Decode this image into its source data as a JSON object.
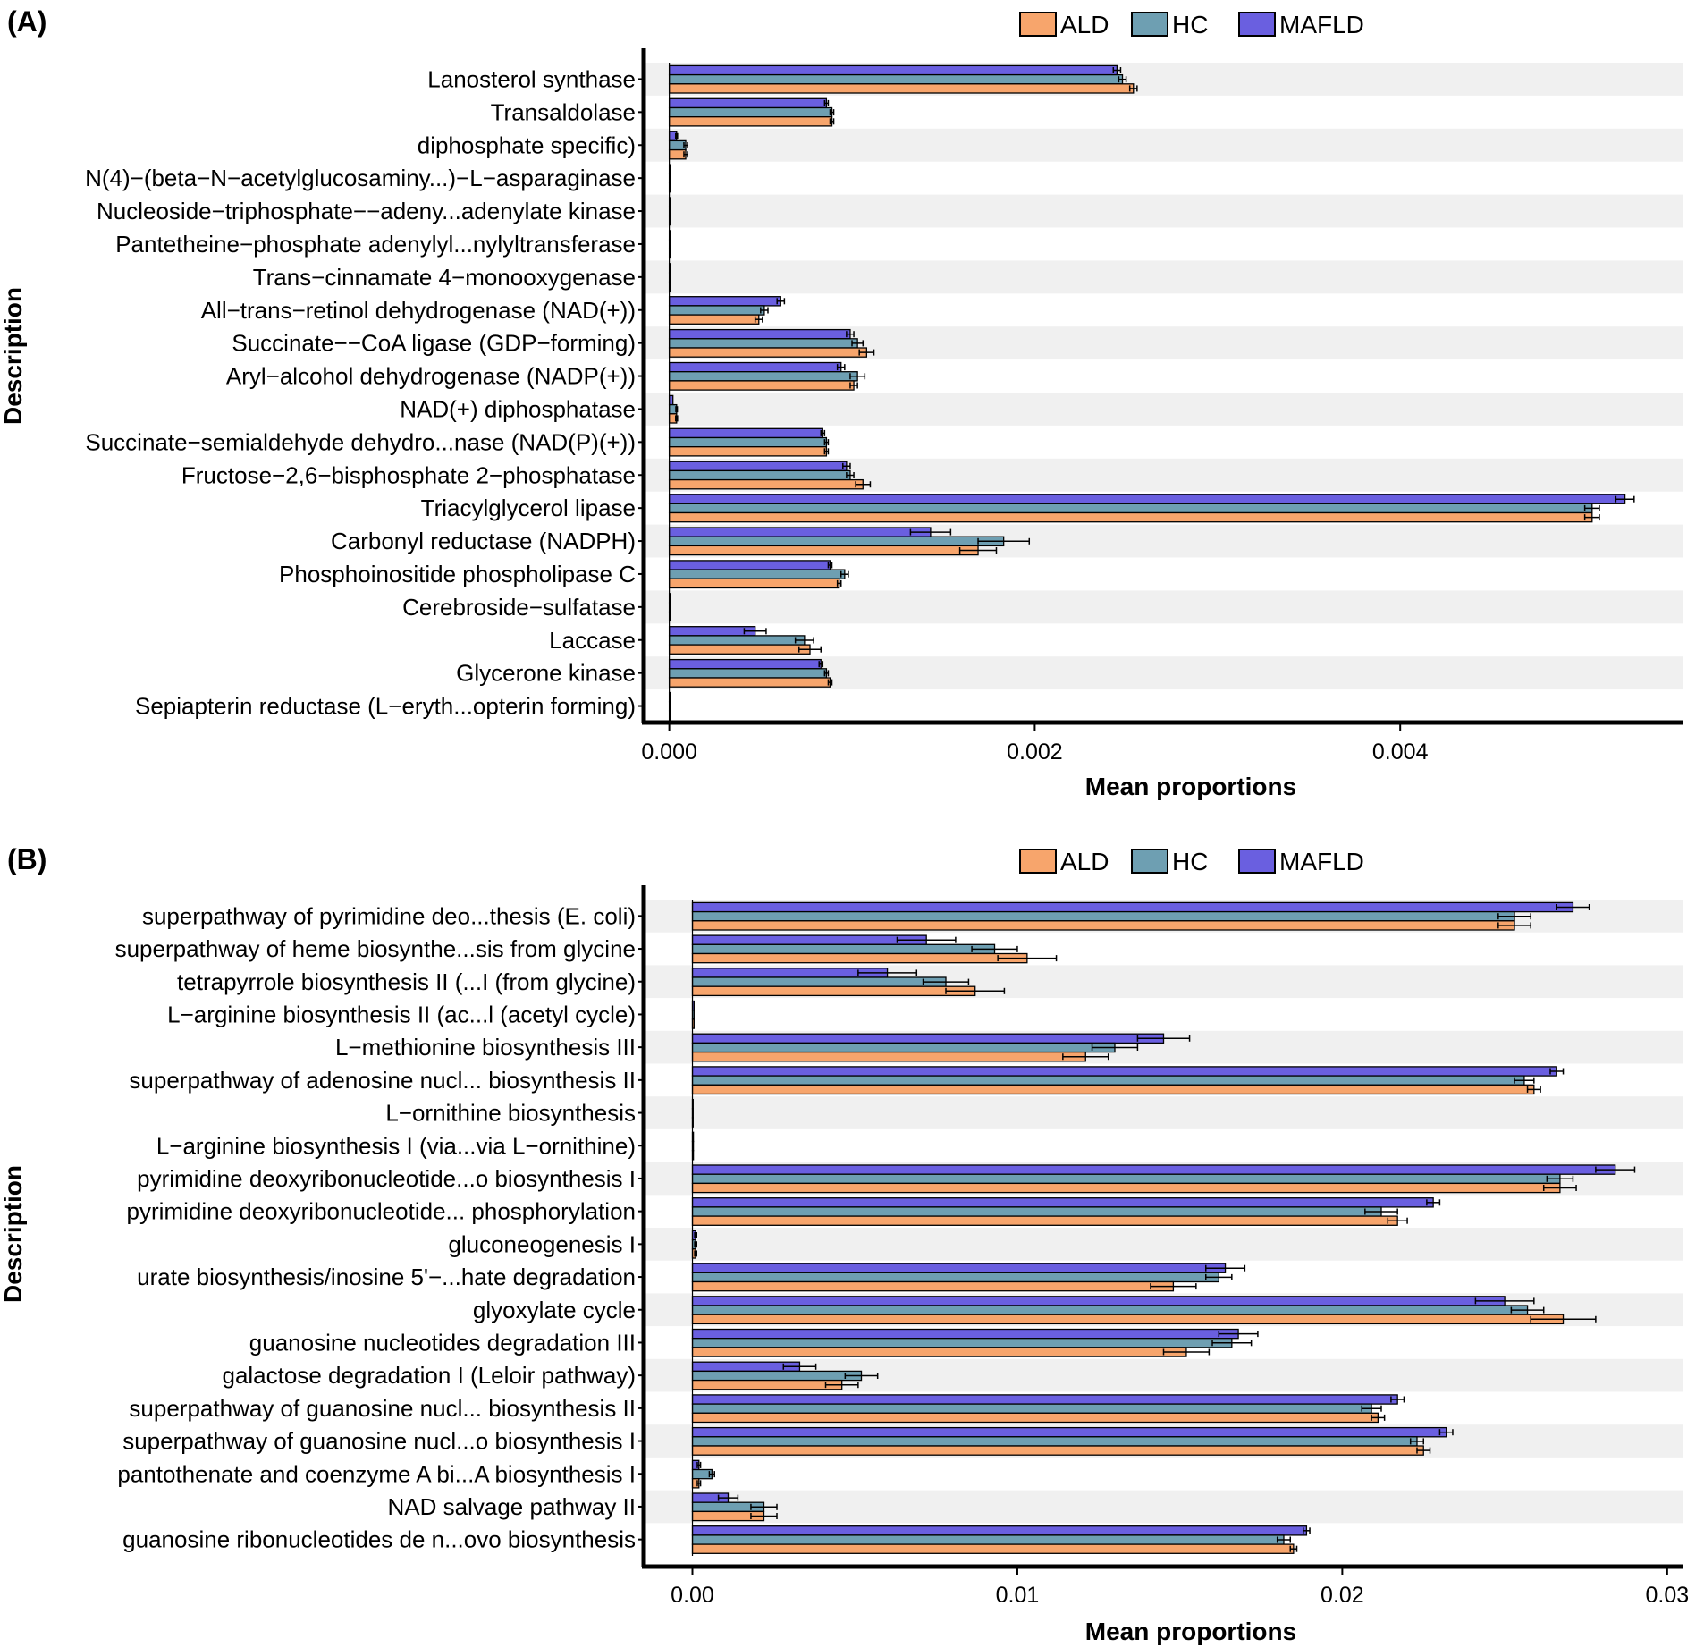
{
  "colors": {
    "ALD": "#F7A56C",
    "HC": "#6E9FB2",
    "MAFLD": "#6A5FE0",
    "band": "#F0F0F0",
    "axis": "#000000"
  },
  "legend_order": [
    "ALD",
    "HC",
    "MAFLD"
  ],
  "chart_data": [
    {
      "panel_label": "(A)",
      "type": "bar",
      "orientation": "horizontal",
      "ylabel": "Description",
      "xlabel": "Mean proportions",
      "xlim": [
        -0.00014,
        0.00555
      ],
      "xticks": [
        0.0,
        0.002,
        0.004
      ],
      "xtick_labels": [
        "0.000",
        "0.002",
        "0.004"
      ],
      "legend": [
        "ALD",
        "HC",
        "MAFLD"
      ],
      "categories": [
        "Lanosterol synthase",
        "Transaldolase",
        "diphosphate specific)",
        "N(4)−(beta−N−acetylglucosaminy...)−L−asparaginase",
        "Nucleoside−triphosphate−−adeny...adenylate kinase",
        "Pantetheine−phosphate adenylyl...nylyltransferase",
        "Trans−cinnamate 4−monooxygenase",
        "All−trans−retinol dehydrogenase (NAD(+))",
        "Succinate−−CoA ligase (GDP−forming)",
        "Aryl−alcohol dehydrogenase (NADP(+))",
        "NAD(+) diphosphatase",
        "Succinate−semialdehyde dehydro...nase (NAD(P)(+))",
        "Fructose−2,6−bisphosphate 2−phosphatase",
        "Triacylglycerol lipase",
        "Carbonyl reductase (NADPH)",
        "Phosphoinositide phospholipase C",
        "Cerebroside−sulfatase",
        "Laccase",
        "Glycerone kinase",
        "Sepiapterin reductase (L−eryth...opterin forming)"
      ],
      "series": [
        {
          "name": "MAFLD",
          "values": [
            0.00245,
            0.00086,
            4e-05,
            4e-06,
            2e-06,
            2e-06,
            2e-06,
            0.00061,
            0.00099,
            0.00094,
            2e-05,
            0.00084,
            0.00097,
            0.00523,
            0.00143,
            0.00088,
            2e-06,
            0.00047,
            0.00083,
            0.0
          ],
          "errors": [
            2e-05,
            1e-05,
            5e-06,
            1e-06,
            5e-07,
            5e-07,
            5e-07,
            2e-05,
            2e-05,
            2e-05,
            2e-06,
            1e-05,
            2e-05,
            5e-05,
            0.00011,
            1e-05,
            5e-07,
            6e-05,
            1e-05,
            0.0
          ]
        },
        {
          "name": "HC",
          "values": [
            0.00248,
            0.00089,
            9e-05,
            4e-06,
            2e-06,
            2e-06,
            2e-06,
            0.00052,
            0.00103,
            0.00103,
            4e-05,
            0.00086,
            0.00099,
            0.00505,
            0.00183,
            0.00096,
            2e-06,
            0.00074,
            0.00086,
            0.0
          ],
          "errors": [
            2e-05,
            1e-05,
            1e-05,
            1e-06,
            5e-07,
            5e-07,
            5e-07,
            2e-05,
            3e-05,
            4e-05,
            4e-06,
            1e-05,
            2e-05,
            4e-05,
            0.00014,
            2e-05,
            5e-07,
            5e-05,
            1e-05,
            0.0
          ]
        },
        {
          "name": "ALD",
          "values": [
            0.00254,
            0.00089,
            9e-05,
            4e-06,
            2e-06,
            2e-06,
            2e-06,
            0.00049,
            0.00108,
            0.00101,
            4e-05,
            0.00086,
            0.00106,
            0.00505,
            0.00169,
            0.00093,
            2e-06,
            0.00077,
            0.00088,
            0.0
          ],
          "errors": [
            2e-05,
            1e-05,
            1e-05,
            1e-06,
            5e-07,
            5e-07,
            5e-07,
            2e-05,
            4e-05,
            2e-05,
            5e-06,
            1e-05,
            4e-05,
            4e-05,
            0.0001,
            1e-05,
            5e-07,
            6e-05,
            1e-05,
            0.0
          ]
        }
      ]
    },
    {
      "panel_label": "(B)",
      "type": "bar",
      "orientation": "horizontal",
      "ylabel": "Description",
      "xlabel": "Mean proportions",
      "xlim": [
        -0.0015,
        0.0305
      ],
      "xticks": [
        0.0,
        0.01,
        0.02,
        0.03
      ],
      "xtick_labels": [
        "0.00",
        "0.01",
        "0.02",
        "0.03"
      ],
      "legend": [
        "ALD",
        "HC",
        "MAFLD"
      ],
      "categories": [
        "superpathway of pyrimidine deo...thesis (E. coli)",
        "superpathway of heme biosynthe...sis from glycine",
        "tetrapyrrole biosynthesis II (...I (from glycine)",
        "L−arginine biosynthesis II (ac...l (acetyl cycle)",
        "L−methionine biosynthesis III",
        "superpathway of adenosine nucl... biosynthesis II",
        "L−ornithine biosynthesis",
        "L−arginine biosynthesis I (via...via L−ornithine)",
        "pyrimidine deoxyribonucleotide...o biosynthesis I",
        "pyrimidine deoxyribonucleotide... phosphorylation",
        "gluconeogenesis I",
        "urate biosynthesis/inosine 5'−...hate degradation",
        "glyoxylate cycle",
        "guanosine nucleotides degradation III",
        "galactose degradation I (Leloir pathway)",
        "superpathway of guanosine nucl... biosynthesis II",
        "superpathway of guanosine nucl...o biosynthesis I",
        "pantothenate and coenzyme A bi...A biosynthesis I",
        "NAD salvage pathway II",
        "guanosine ribonucleotides de n...ovo biosynthesis"
      ],
      "series": [
        {
          "name": "MAFLD",
          "values": [
            0.0271,
            0.0072,
            0.006,
            5e-05,
            0.0145,
            0.0266,
            2e-05,
            3e-05,
            0.0284,
            0.0228,
            0.0001,
            0.0164,
            0.025,
            0.0168,
            0.0033,
            0.0217,
            0.0232,
            0.0002,
            0.0011,
            0.0189
          ],
          "errors": [
            0.0005,
            0.0009,
            0.0009,
            2e-05,
            0.0008,
            0.0002,
            5e-06,
            1e-05,
            0.0006,
            0.0002,
            3e-05,
            0.0006,
            0.0009,
            0.0006,
            0.0005,
            0.0002,
            0.0002,
            5e-05,
            0.0003,
            0.0001
          ]
        },
        {
          "name": "HC",
          "values": [
            0.0253,
            0.0093,
            0.0078,
            5e-05,
            0.013,
            0.0256,
            2e-05,
            3e-05,
            0.0267,
            0.0212,
            0.0001,
            0.0162,
            0.0257,
            0.0166,
            0.0052,
            0.0209,
            0.0223,
            0.0006,
            0.0022,
            0.0182
          ],
          "errors": [
            0.0005,
            0.0007,
            0.0007,
            2e-05,
            0.0007,
            0.0003,
            5e-06,
            1e-05,
            0.0004,
            0.0005,
            3e-05,
            0.0004,
            0.0005,
            0.0006,
            0.0005,
            0.0003,
            0.0002,
            8e-05,
            0.0004,
            0.0002
          ]
        },
        {
          "name": "ALD",
          "values": [
            0.0253,
            0.0103,
            0.0087,
            5e-05,
            0.0121,
            0.0259,
            2e-05,
            3e-05,
            0.0267,
            0.0217,
            0.0001,
            0.0148,
            0.0268,
            0.0152,
            0.0046,
            0.0211,
            0.0225,
            0.0002,
            0.0022,
            0.0185
          ],
          "errors": [
            0.0005,
            0.0009,
            0.0009,
            2e-05,
            0.0007,
            0.0002,
            5e-06,
            1e-05,
            0.0005,
            0.0003,
            3e-05,
            0.0007,
            0.001,
            0.0007,
            0.0005,
            0.0002,
            0.0002,
            5e-05,
            0.0004,
            0.0001
          ]
        }
      ]
    }
  ]
}
